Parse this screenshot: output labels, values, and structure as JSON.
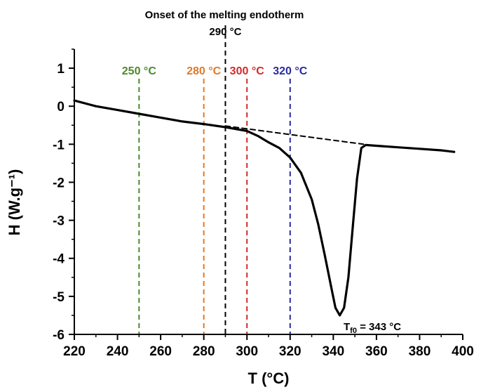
{
  "chart_data": {
    "type": "line",
    "xlabel": "T (°C)",
    "ylabel": "H (W.g⁻¹)",
    "xlim": [
      220,
      400
    ],
    "ylim": [
      -6,
      1.5
    ],
    "xticks": [
      220,
      240,
      260,
      280,
      300,
      320,
      340,
      360,
      380,
      400
    ],
    "yticks": [
      1,
      0,
      -1,
      -2,
      -3,
      -4,
      -5,
      -6
    ],
    "grid": false,
    "series": [
      {
        "color": "#000000",
        "style": "solid",
        "x": [
          220,
          230,
          240,
          250,
          260,
          270,
          280,
          290,
          300,
          305,
          310,
          315,
          320,
          325,
          330,
          333,
          336,
          339,
          341,
          343,
          345,
          347,
          349,
          351,
          353,
          355,
          360,
          370,
          380,
          390,
          396
        ],
        "y": [
          0.15,
          0.0,
          -0.1,
          -0.2,
          -0.3,
          -0.4,
          -0.47,
          -0.55,
          -0.65,
          -0.78,
          -0.95,
          -1.1,
          -1.35,
          -1.75,
          -2.45,
          -3.1,
          -3.9,
          -4.75,
          -5.3,
          -5.5,
          -5.3,
          -4.5,
          -3.2,
          -1.9,
          -1.1,
          -1.02,
          -1.04,
          -1.08,
          -1.12,
          -1.16,
          -1.2
        ]
      },
      {
        "color": "#000000",
        "style": "dashed",
        "x": [
          290,
          354
        ],
        "y": [
          -0.52,
          -1.0
        ]
      }
    ],
    "vertical_lines": [
      {
        "x": 250,
        "label": "250 °C",
        "color": "#4a8a2c"
      },
      {
        "x": 280,
        "label": "280 °C",
        "color": "#e07a2a"
      },
      {
        "x": 290,
        "label": "290 °C",
        "color": "#000000"
      },
      {
        "x": 300,
        "label": "300 °C",
        "color": "#d42a2a"
      },
      {
        "x": 320,
        "label": "320 °C",
        "color": "#2a2aa0"
      }
    ],
    "annotations": {
      "onset": "Onset of the melting endotherm",
      "peak_symbol": "T",
      "peak_subscript": "f0",
      "peak_value": " = 343 °C"
    }
  }
}
